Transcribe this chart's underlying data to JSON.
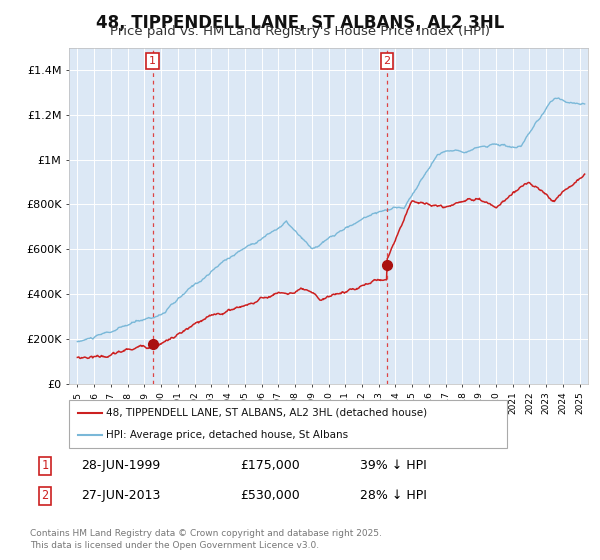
{
  "title": "48, TIPPENDELL LANE, ST ALBANS, AL2 3HL",
  "subtitle": "Price paid vs. HM Land Registry's House Price Index (HPI)",
  "title_fontsize": 12,
  "subtitle_fontsize": 9.5,
  "background_color": "#ffffff",
  "plot_bg_color": "#dce8f5",
  "grid_color": "#ffffff",
  "hpi_color": "#7ab8d8",
  "price_color": "#cc2020",
  "marker_color": "#aa1010",
  "vline_color": "#dd4444",
  "annotation_box_color": "#cc2020",
  "ylim": [
    0,
    1500000
  ],
  "yticks": [
    0,
    200000,
    400000,
    600000,
    800000,
    1000000,
    1200000,
    1400000
  ],
  "ytick_labels": [
    "£0",
    "£200K",
    "£400K",
    "£600K",
    "£800K",
    "£1M",
    "£1.2M",
    "£1.4M"
  ],
  "sale1_year": 1999.49,
  "sale1_price": 175000,
  "sale1_label": "1",
  "sale1_date_str": "28-JUN-1999",
  "sale1_amount": "£175,000",
  "sale1_hpi_pct": "39% ↓ HPI",
  "sale2_year": 2013.49,
  "sale2_price": 530000,
  "sale2_label": "2",
  "sale2_date_str": "27-JUN-2013",
  "sale2_amount": "£530,000",
  "sale2_hpi_pct": "28% ↓ HPI",
  "legend_line1": "48, TIPPENDELL LANE, ST ALBANS, AL2 3HL (detached house)",
  "legend_line2": "HPI: Average price, detached house, St Albans",
  "footnote1": "Contains HM Land Registry data © Crown copyright and database right 2025.",
  "footnote2": "This data is licensed under the Open Government Licence v3.0.",
  "xmin": 1994.5,
  "xmax": 2025.5
}
